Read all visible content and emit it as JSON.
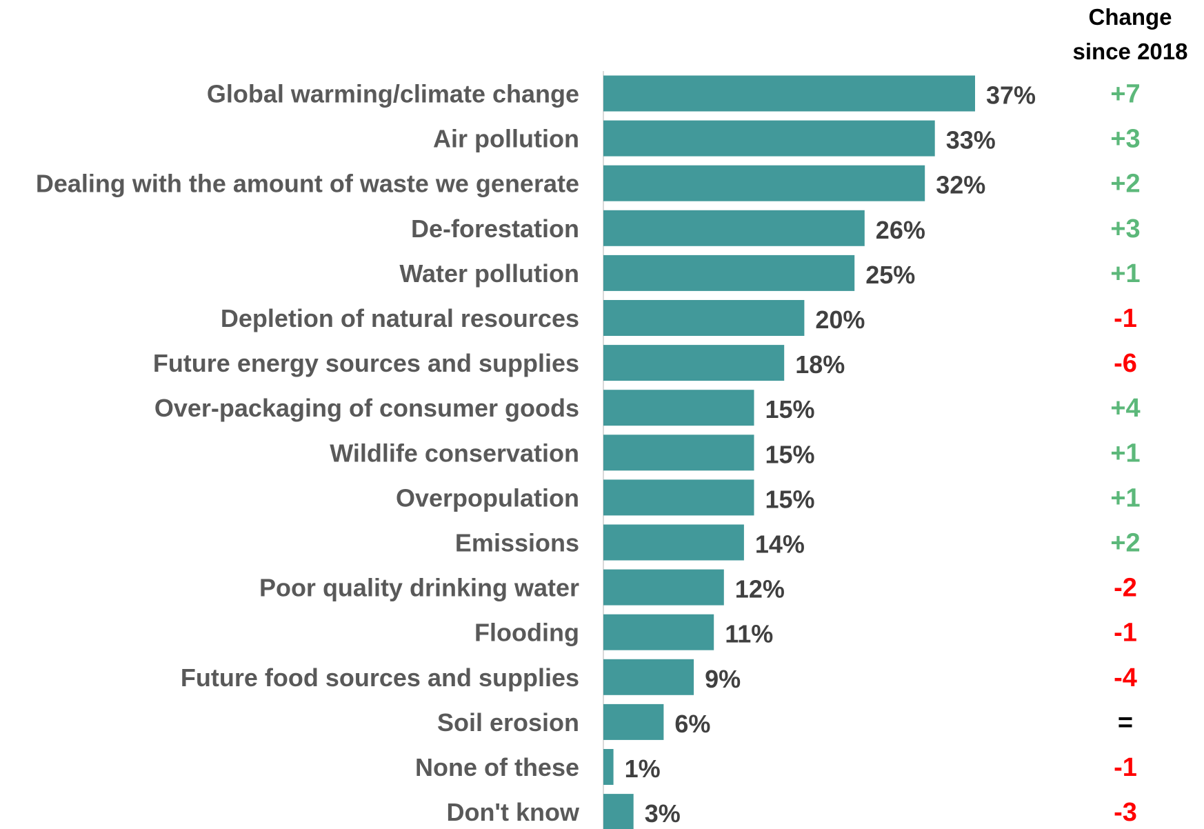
{
  "chart_data": {
    "type": "bar",
    "orientation": "horizontal",
    "categories": [
      "Global warming/climate change",
      "Air pollution",
      "Dealing with the amount of waste we generate",
      "De-forestation",
      "Water pollution",
      "Depletion of natural resources",
      "Future energy sources and supplies",
      "Over-packaging of consumer goods",
      "Wildlife conservation",
      "Overpopulation",
      "Emissions",
      "Poor quality drinking water",
      "Flooding",
      "Future food sources and supplies",
      "Soil erosion",
      "None of these",
      "Don't know"
    ],
    "values": [
      37,
      33,
      32,
      26,
      25,
      20,
      18,
      15,
      15,
      15,
      14,
      12,
      11,
      9,
      6,
      1,
      3
    ],
    "value_labels": [
      "37%",
      "33%",
      "32%",
      "26%",
      "25%",
      "20%",
      "18%",
      "15%",
      "15%",
      "15%",
      "14%",
      "12%",
      "11%",
      "9%",
      "6%",
      "1%",
      "3%"
    ],
    "change_header": [
      "Change",
      "since 2018"
    ],
    "changes": [
      "+7",
      "+3",
      "+2",
      "+3",
      "+1",
      "-1",
      "-6",
      "+4",
      "+1",
      "+1",
      "+2",
      "-2",
      "-1",
      "-4",
      "=",
      "-1",
      "-3"
    ],
    "xlim": [
      0,
      37
    ],
    "grid": false,
    "colors": {
      "bar": "#42999A",
      "axis": "#D9D9D9",
      "category_text": "#595959",
      "value_text": "#404040",
      "positive_change": "#5CB87A",
      "negative_change": "#FF0000",
      "no_change": "#000000",
      "header_text": "#000000"
    }
  }
}
